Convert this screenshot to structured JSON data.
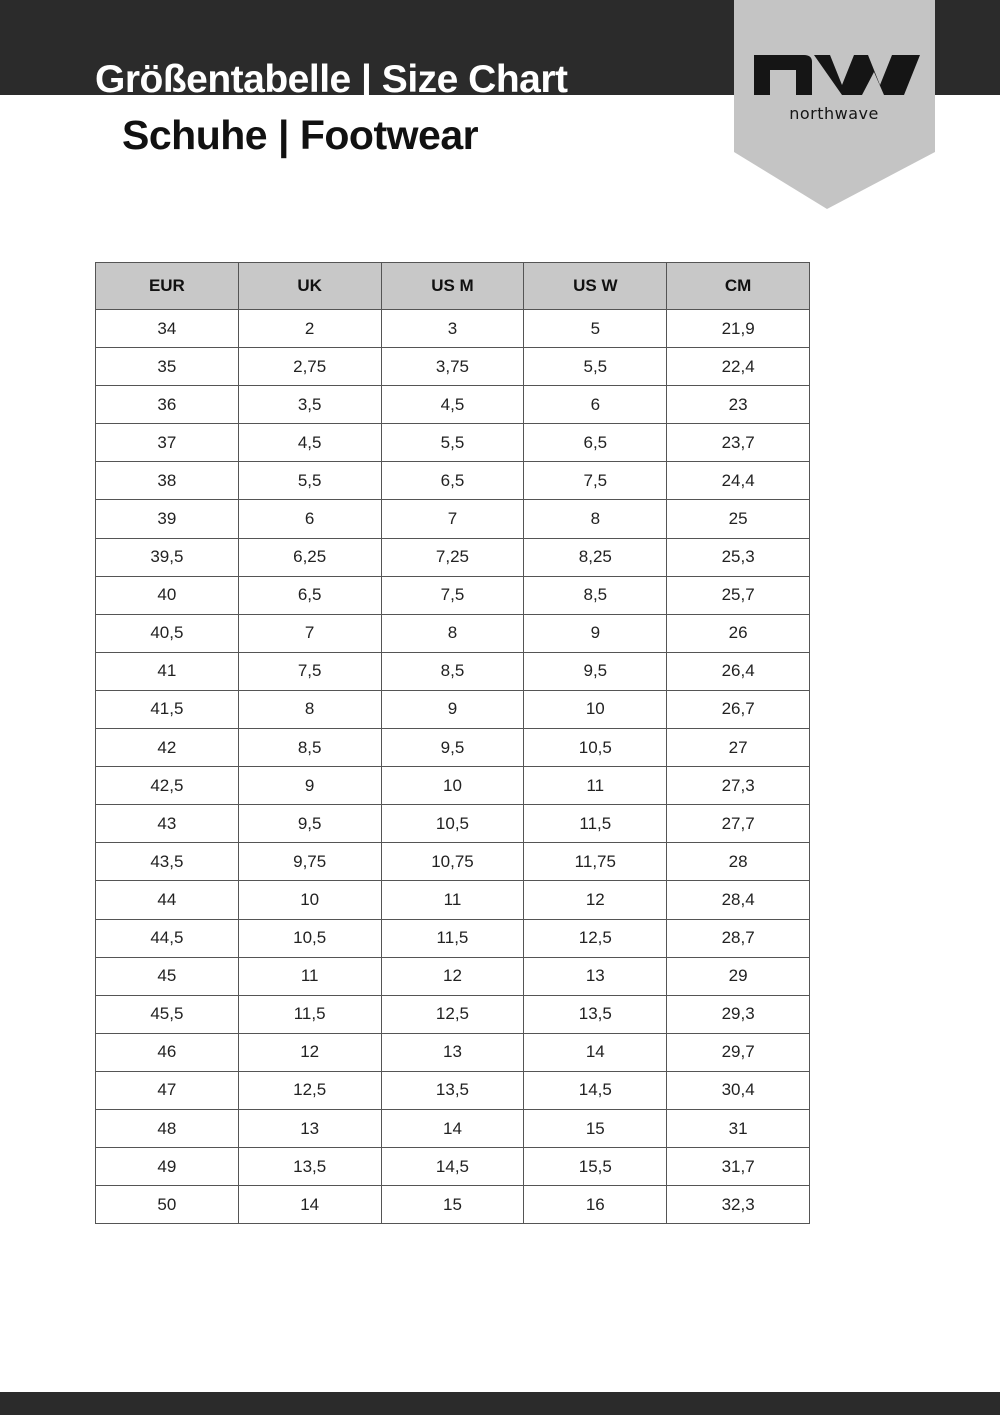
{
  "header": {
    "title": "Größentabelle | Size Chart",
    "subtitle": "Schuhe | Footwear",
    "brand": "northwave",
    "colors": {
      "band": "#2b2b2b",
      "logo_banner": "#c4c4c4",
      "table_header": "#c8c8c8"
    }
  },
  "table": {
    "columns": [
      "EUR",
      "UK",
      "US M",
      "US W",
      "CM"
    ],
    "rows": [
      [
        "34",
        "2",
        "3",
        "5",
        "21,9"
      ],
      [
        "35",
        "2,75",
        "3,75",
        "5,5",
        "22,4"
      ],
      [
        "36",
        "3,5",
        "4,5",
        "6",
        "23"
      ],
      [
        "37",
        "4,5",
        "5,5",
        "6,5",
        "23,7"
      ],
      [
        "38",
        "5,5",
        "6,5",
        "7,5",
        "24,4"
      ],
      [
        "39",
        "6",
        "7",
        "8",
        "25"
      ],
      [
        "39,5",
        "6,25",
        "7,25",
        "8,25",
        "25,3"
      ],
      [
        "40",
        "6,5",
        "7,5",
        "8,5",
        "25,7"
      ],
      [
        "40,5",
        "7",
        "8",
        "9",
        "26"
      ],
      [
        "41",
        "7,5",
        "8,5",
        "9,5",
        "26,4"
      ],
      [
        "41,5",
        "8",
        "9",
        "10",
        "26,7"
      ],
      [
        "42",
        "8,5",
        "9,5",
        "10,5",
        "27"
      ],
      [
        "42,5",
        "9",
        "10",
        "11",
        "27,3"
      ],
      [
        "43",
        "9,5",
        "10,5",
        "11,5",
        "27,7"
      ],
      [
        "43,5",
        "9,75",
        "10,75",
        "11,75",
        "28"
      ],
      [
        "44",
        "10",
        "11",
        "12",
        "28,4"
      ],
      [
        "44,5",
        "10,5",
        "11,5",
        "12,5",
        "28,7"
      ],
      [
        "45",
        "11",
        "12",
        "13",
        "29"
      ],
      [
        "45,5",
        "11,5",
        "12,5",
        "13,5",
        "29,3"
      ],
      [
        "46",
        "12",
        "13",
        "14",
        "29,7"
      ],
      [
        "47",
        "12,5",
        "13,5",
        "14,5",
        "30,4"
      ],
      [
        "48",
        "13",
        "14",
        "15",
        "31"
      ],
      [
        "49",
        "13,5",
        "14,5",
        "15,5",
        "31,7"
      ],
      [
        "50",
        "14",
        "15",
        "16",
        "32,3"
      ]
    ]
  }
}
